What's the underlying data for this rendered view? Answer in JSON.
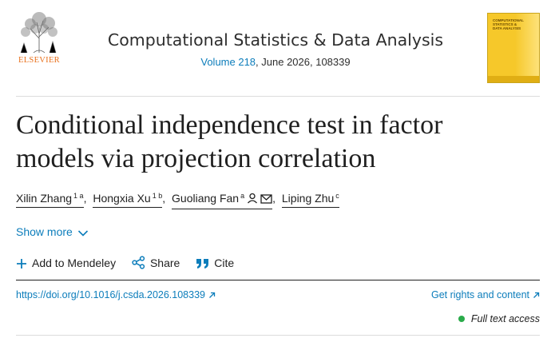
{
  "header": {
    "publisher_logo_text": "ELSEVIER",
    "journal_title": "Computational Statistics & Data Analysis",
    "volume_link": "Volume 218",
    "volume_rest": ", June 2026, 108339",
    "cover_text": "COMPUTATIONAL STATISTICS & DATA ANALYSIS"
  },
  "article": {
    "title": "Conditional independence test in factor models via projection correlation",
    "authors": [
      {
        "name": "Xilin Zhang",
        "sup": "1 a",
        "sep": ","
      },
      {
        "name": "Hongxia Xu",
        "sup": "1 b",
        "sep": ","
      },
      {
        "name": "Guoliang Fan",
        "sup": "a",
        "sep": ","
      },
      {
        "name": "Liping Zhu",
        "sup": "c",
        "sep": ""
      }
    ],
    "show_more": "Show more"
  },
  "actions": {
    "mendeley": "Add to Mendeley",
    "share": "Share",
    "cite": "Cite"
  },
  "links": {
    "doi": "https://doi.org/10.1016/j.csda.2026.108339",
    "rights": "Get rights and content",
    "access": "Full text access"
  },
  "colors": {
    "link": "#0c7dbb",
    "elsevier_orange": "#e9711c",
    "access_green": "#2aab4a"
  },
  "icons": [
    "elsevier-tree-logo",
    "person-icon",
    "envelope-icon",
    "chevron-down-icon",
    "plus-icon",
    "share-icon",
    "quote-icon",
    "external-arrow-icon"
  ]
}
